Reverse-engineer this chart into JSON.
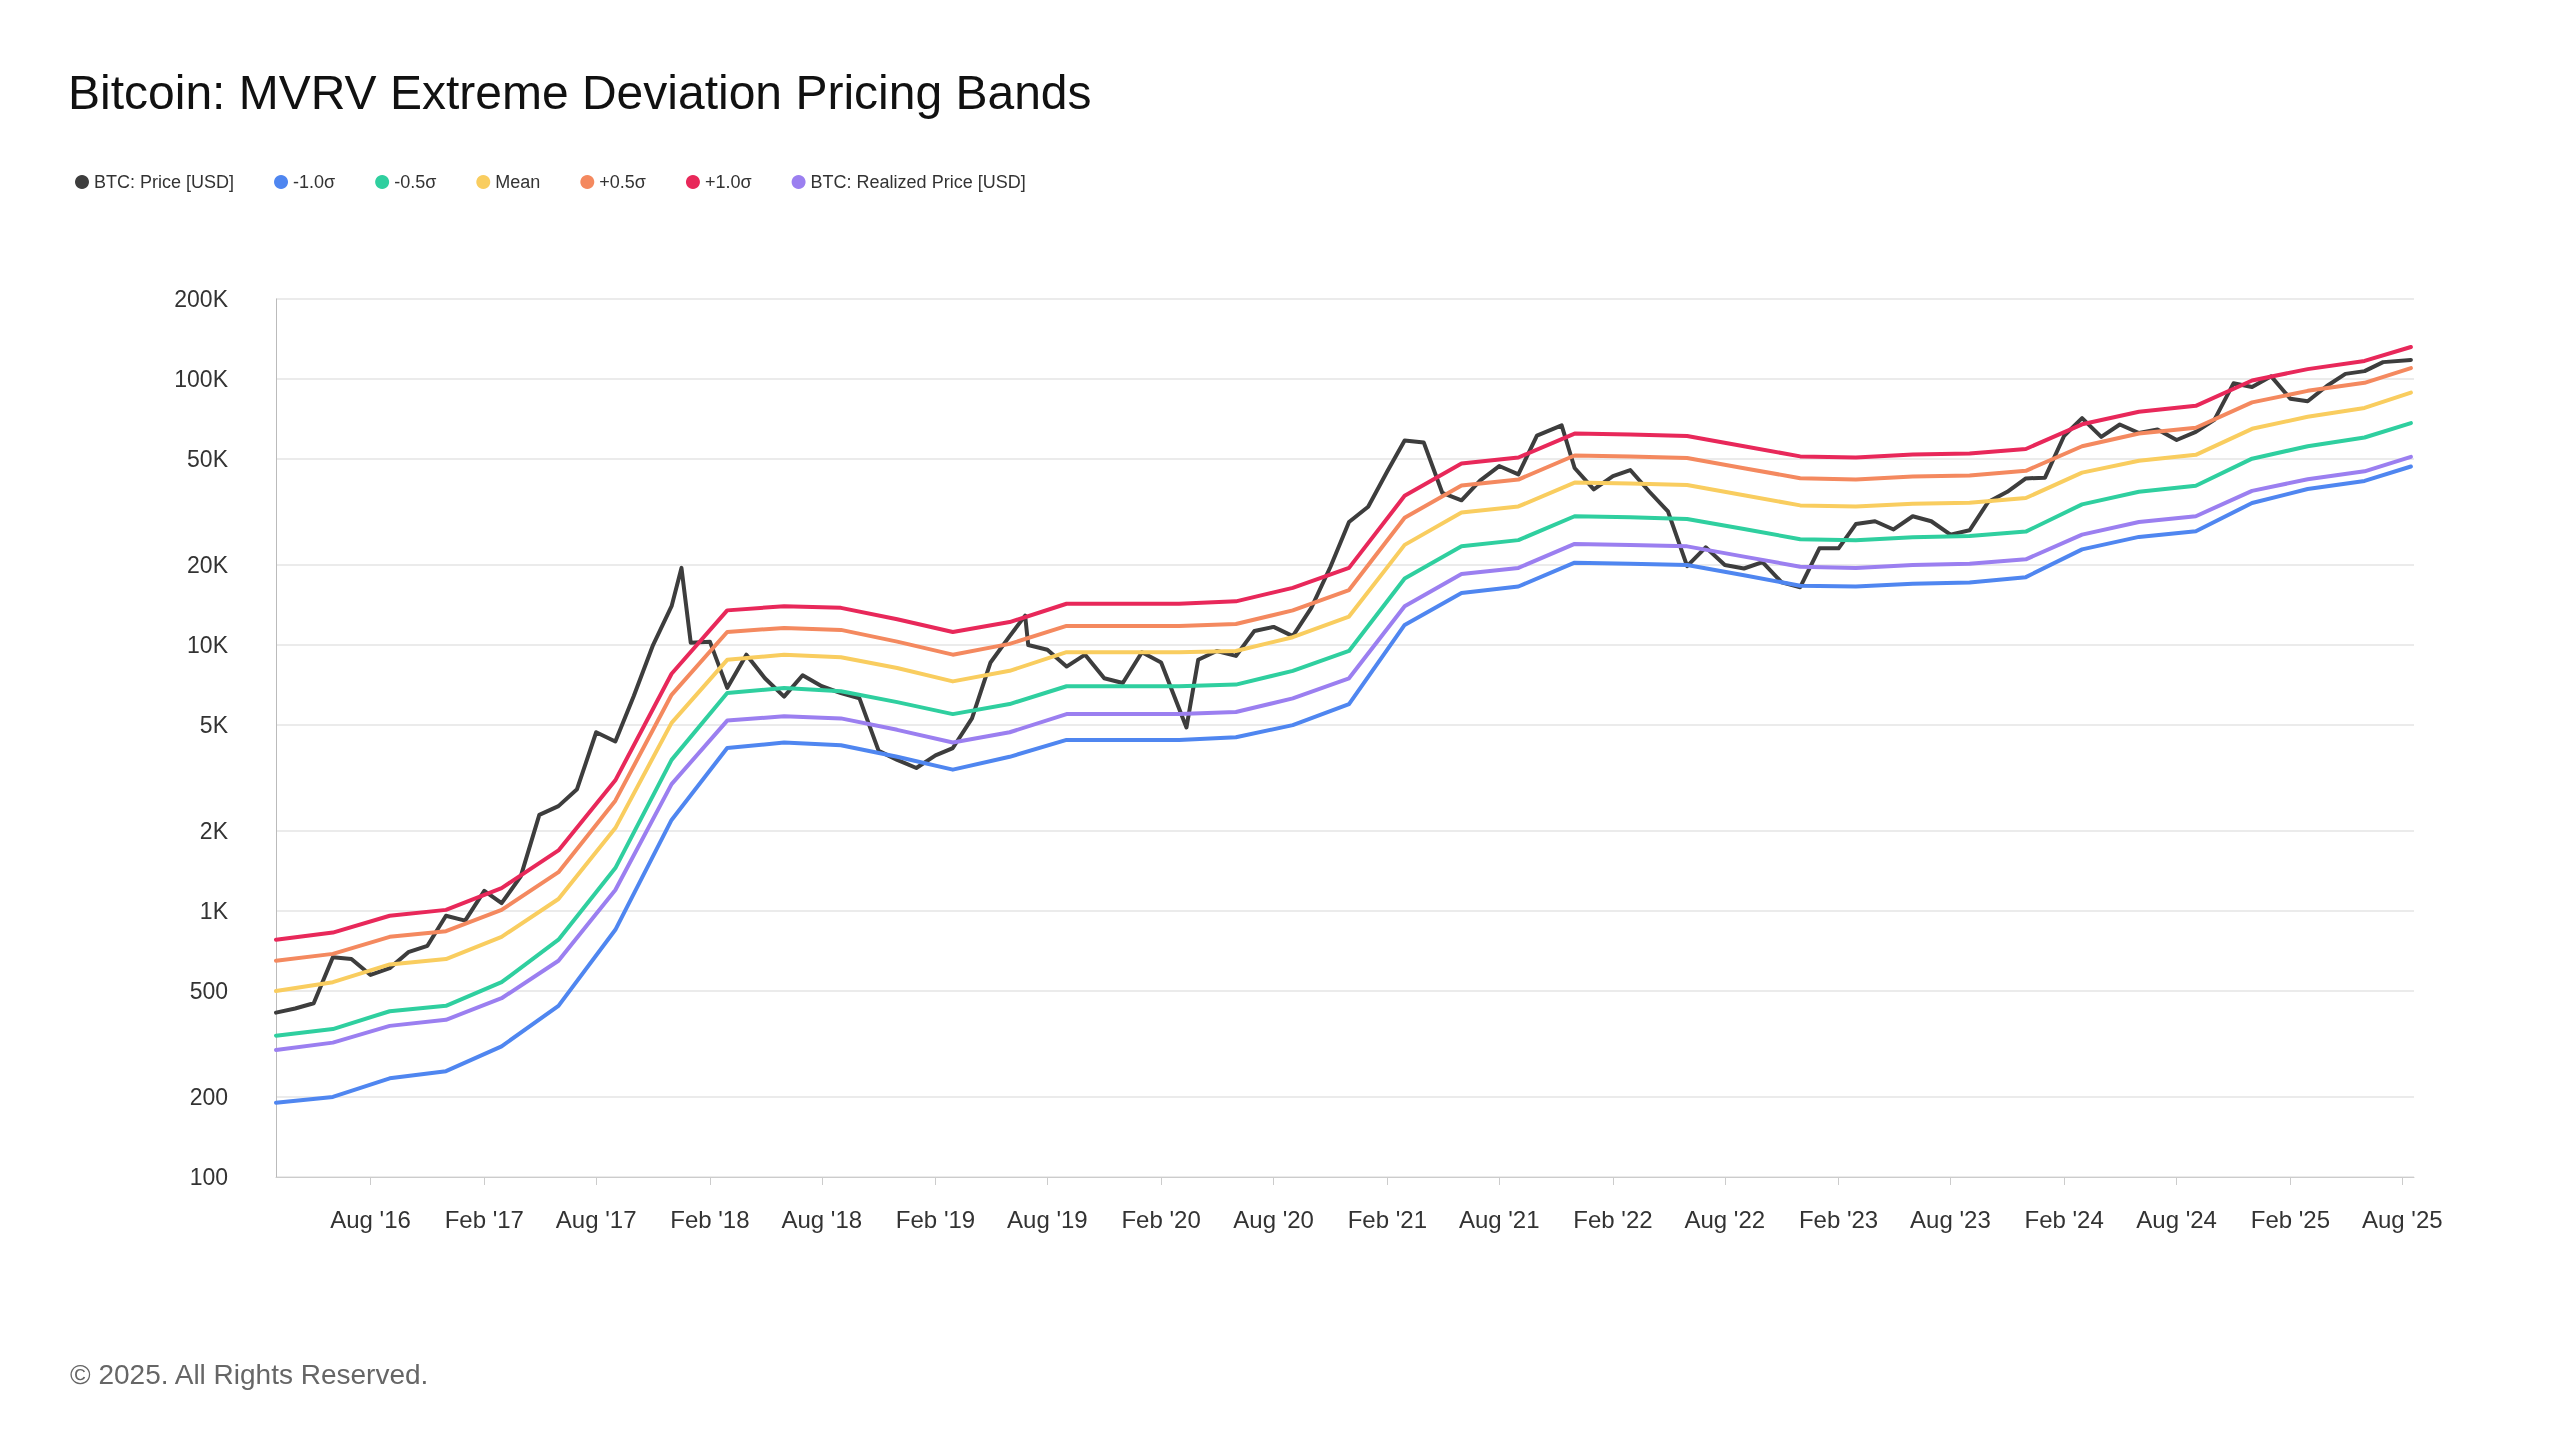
{
  "chart_data": {
    "type": "line",
    "title": "Bitcoin: MVRV Extreme Deviation Pricing Bands",
    "log": true,
    "grid": "y",
    "legend": "top left",
    "annotations": [
      "© 2025. All Rights Reserved."
    ],
    "xlim": [
      "2016-03-01",
      "2025-08-20"
    ],
    "xticks": [
      {
        "value": "2016-08",
        "label": "Aug '16"
      },
      {
        "value": "2017-02",
        "label": "Feb '17"
      },
      {
        "value": "2017-08",
        "label": "Aug '17"
      },
      {
        "value": "2018-02",
        "label": "Feb '18"
      },
      {
        "value": "2018-08",
        "label": "Aug '18"
      },
      {
        "value": "2019-02",
        "label": "Feb '19"
      },
      {
        "value": "2019-08",
        "label": "Aug '19"
      },
      {
        "value": "2020-02",
        "label": "Feb '20"
      },
      {
        "value": "2020-08",
        "label": "Aug '20"
      },
      {
        "value": "2021-02",
        "label": "Feb '21"
      },
      {
        "value": "2021-08",
        "label": "Aug '21"
      },
      {
        "value": "2022-02",
        "label": "Feb '22"
      },
      {
        "value": "2022-08",
        "label": "Aug '22"
      },
      {
        "value": "2023-02",
        "label": "Feb '23"
      },
      {
        "value": "2023-08",
        "label": "Aug '23"
      },
      {
        "value": "2024-02",
        "label": "Feb '24"
      },
      {
        "value": "2024-08",
        "label": "Aug '24"
      },
      {
        "value": "2025-02",
        "label": "Feb '25"
      },
      {
        "value": "2025-08",
        "label": "Aug '25"
      }
    ],
    "ylim": [
      100,
      200000
    ],
    "yticks": [
      100,
      200,
      500,
      {
        "value": 1000,
        "label": "1K"
      },
      {
        "value": 2000,
        "label": "2K"
      },
      {
        "value": 5000,
        "label": "5K"
      },
      {
        "value": 10000,
        "label": "10K"
      },
      {
        "value": 20000,
        "label": "20K"
      },
      {
        "value": 50000,
        "label": "50K"
      },
      {
        "value": 100000,
        "label": "100K"
      },
      {
        "value": 200000,
        "label": "200K"
      }
    ],
    "x": [
      "2016-03",
      "2016-06",
      "2016-09",
      "2016-12",
      "2017-03",
      "2017-06",
      "2017-09",
      "2017-12",
      "2018-03",
      "2018-06",
      "2018-09",
      "2018-12",
      "2019-03",
      "2019-06",
      "2019-09",
      "2019-12",
      "2020-03",
      "2020-06",
      "2020-09",
      "2020-12",
      "2021-03",
      "2021-06",
      "2021-09",
      "2021-12",
      "2022-03",
      "2022-06",
      "2022-09",
      "2022-12",
      "2023-03",
      "2023-06",
      "2023-09",
      "2023-12",
      "2024-03",
      "2024-06",
      "2024-09",
      "2024-12",
      "2025-03",
      "2025-06",
      "2025-08-15"
    ],
    "series": [
      {
        "name": "BTC: Price [USD]",
        "color": "#3d3d3d",
        "x": [
          "2016-03",
          "2016-04",
          "2016-05",
          "2016-06",
          "2016-07",
          "2016-08",
          "2016-09",
          "2016-10",
          "2016-11",
          "2016-12",
          "2017-01",
          "2017-02",
          "2017-03",
          "2017-04",
          "2017-05",
          "2017-06",
          "2017-07",
          "2017-08",
          "2017-09",
          "2017-10",
          "2017-11",
          "2017-12",
          "2017-12-17",
          "2018-01",
          "2018-02",
          "2018-03",
          "2018-04",
          "2018-05",
          "2018-06",
          "2018-07",
          "2018-08",
          "2018-09",
          "2018-10",
          "2018-11",
          "2018-12",
          "2019-01",
          "2019-02",
          "2019-03",
          "2019-04",
          "2019-05",
          "2019-06",
          "2019-06-26",
          "2019-07",
          "2019-08",
          "2019-09",
          "2019-10",
          "2019-11",
          "2019-12",
          "2020-01",
          "2020-02",
          "2020-03-13",
          "2020-04",
          "2020-05",
          "2020-06",
          "2020-07",
          "2020-08",
          "2020-09",
          "2020-10",
          "2020-11",
          "2020-12",
          "2021-01",
          "2021-02",
          "2021-03",
          "2021-04",
          "2021-05",
          "2021-06",
          "2021-07",
          "2021-08",
          "2021-09",
          "2021-10",
          "2021-11-10",
          "2021-12",
          "2022-01",
          "2022-02",
          "2022-03",
          "2022-04",
          "2022-05",
          "2022-06",
          "2022-07",
          "2022-08",
          "2022-09",
          "2022-10",
          "2022-11",
          "2022-12",
          "2023-01",
          "2023-02",
          "2023-03",
          "2023-04",
          "2023-05",
          "2023-06",
          "2023-07",
          "2023-08",
          "2023-09",
          "2023-10",
          "2023-11",
          "2023-12",
          "2024-01",
          "2024-02",
          "2024-03",
          "2024-04",
          "2024-05",
          "2024-06",
          "2024-07",
          "2024-08",
          "2024-09",
          "2024-10",
          "2024-11",
          "2024-12",
          "2025-01",
          "2025-02",
          "2025-03",
          "2025-04",
          "2025-05",
          "2025-06",
          "2025-07",
          "2025-08-15"
        ],
        "values": [
          415,
          430,
          450,
          670,
          660,
          575,
          610,
          700,
          740,
          960,
          920,
          1190,
          1070,
          1350,
          2300,
          2480,
          2870,
          4700,
          4340,
          6450,
          10000,
          14000,
          19500,
          10200,
          10300,
          6900,
          9200,
          7500,
          6400,
          7700,
          7000,
          6600,
          6300,
          4000,
          3700,
          3450,
          3850,
          4100,
          5300,
          8600,
          10800,
          12900,
          10000,
          9600,
          8300,
          9200,
          7500,
          7200,
          9400,
          8600,
          4900,
          8800,
          9500,
          9100,
          11300,
          11700,
          10800,
          13800,
          19700,
          29000,
          33100,
          45000,
          58800,
          57700,
          37300,
          35000,
          41500,
          47100,
          43800,
          61300,
          67000,
          46300,
          38500,
          43200,
          45500,
          37700,
          31800,
          19800,
          23300,
          20000,
          19400,
          20500,
          17200,
          16500,
          23100,
          23100,
          28500,
          29200,
          27200,
          30500,
          29200,
          26000,
          27000,
          34500,
          37700,
          42300,
          42600,
          61200,
          71300,
          60600,
          67500,
          62700,
          64600,
          59000,
          63300,
          70200,
          96400,
          93400,
          102400,
          84300,
          82500,
          94200,
          104600,
          107100,
          115800,
          118000
        ]
      },
      {
        "name": "-1.0σ",
        "color": "#4f86f0",
        "values": [
          190,
          200,
          235,
          250,
          310,
          440,
          850,
          2200,
          4100,
          4300,
          4200,
          3800,
          3400,
          3800,
          4400,
          4400,
          4400,
          4500,
          5000,
          6000,
          11900,
          15700,
          16600,
          20400,
          20200,
          20000,
          18300,
          16700,
          16600,
          17000,
          17200,
          18000,
          22900,
          25500,
          26800,
          34200,
          38600,
          41400,
          46900
        ]
      },
      {
        "name": "-0.5σ",
        "color": "#2fcf9f",
        "values": [
          340,
          360,
          420,
          440,
          540,
          780,
          1450,
          3700,
          6600,
          6900,
          6700,
          6100,
          5500,
          6000,
          7000,
          7000,
          7000,
          7100,
          8000,
          9500,
          17800,
          23500,
          24800,
          30500,
          30200,
          29800,
          27300,
          25000,
          24800,
          25400,
          25700,
          26700,
          33800,
          37700,
          39700,
          50200,
          55900,
          60300,
          68300
        ]
      },
      {
        "name": "Mean",
        "color": "#f9cd5f",
        "values": [
          500,
          540,
          630,
          660,
          800,
          1110,
          2050,
          5100,
          8800,
          9200,
          9000,
          8200,
          7300,
          8000,
          9400,
          9400,
          9400,
          9500,
          10700,
          12800,
          23800,
          31500,
          33200,
          40800,
          40500,
          40000,
          36600,
          33500,
          33200,
          34000,
          34300,
          35700,
          44500,
          49300,
          51900,
          65000,
          72200,
          77900,
          89000
        ]
      },
      {
        "name": "+0.5σ",
        "color": "#f4895f",
        "values": [
          650,
          690,
          800,
          840,
          1010,
          1400,
          2600,
          6500,
          11200,
          11600,
          11400,
          10300,
          9200,
          10100,
          11800,
          11800,
          11800,
          12000,
          13500,
          16100,
          30100,
          39800,
          41900,
          51600,
          51200,
          50500,
          46200,
          42400,
          41900,
          43000,
          43400,
          45200,
          55900,
          62400,
          65600,
          81700,
          90300,
          96800,
          110000
        ]
      },
      {
        "name": "+1.0σ",
        "color": "#e8285a",
        "values": [
          780,
          830,
          960,
          1010,
          1220,
          1690,
          3100,
          7800,
          13500,
          14000,
          13800,
          12500,
          11200,
          12200,
          14300,
          14300,
          14300,
          14600,
          16400,
          19500,
          36400,
          48100,
          50700,
          62400,
          61900,
          61100,
          55900,
          51200,
          50700,
          52000,
          52500,
          54600,
          67600,
          75400,
          79300,
          98800,
          109000,
          117000,
          132000
        ]
      },
      {
        "name": "BTC: Realized Price [USD]",
        "color": "#9b7ff0",
        "values": [
          300,
          320,
          370,
          390,
          470,
          650,
          1200,
          3000,
          5200,
          5400,
          5300,
          4800,
          4300,
          4700,
          5500,
          5500,
          5500,
          5600,
          6300,
          7500,
          14000,
          18500,
          19500,
          24000,
          23800,
          23500,
          21500,
          19700,
          19500,
          20000,
          20200,
          21000,
          26000,
          29000,
          30500,
          38000,
          42000,
          45000,
          51000
        ]
      }
    ]
  }
}
